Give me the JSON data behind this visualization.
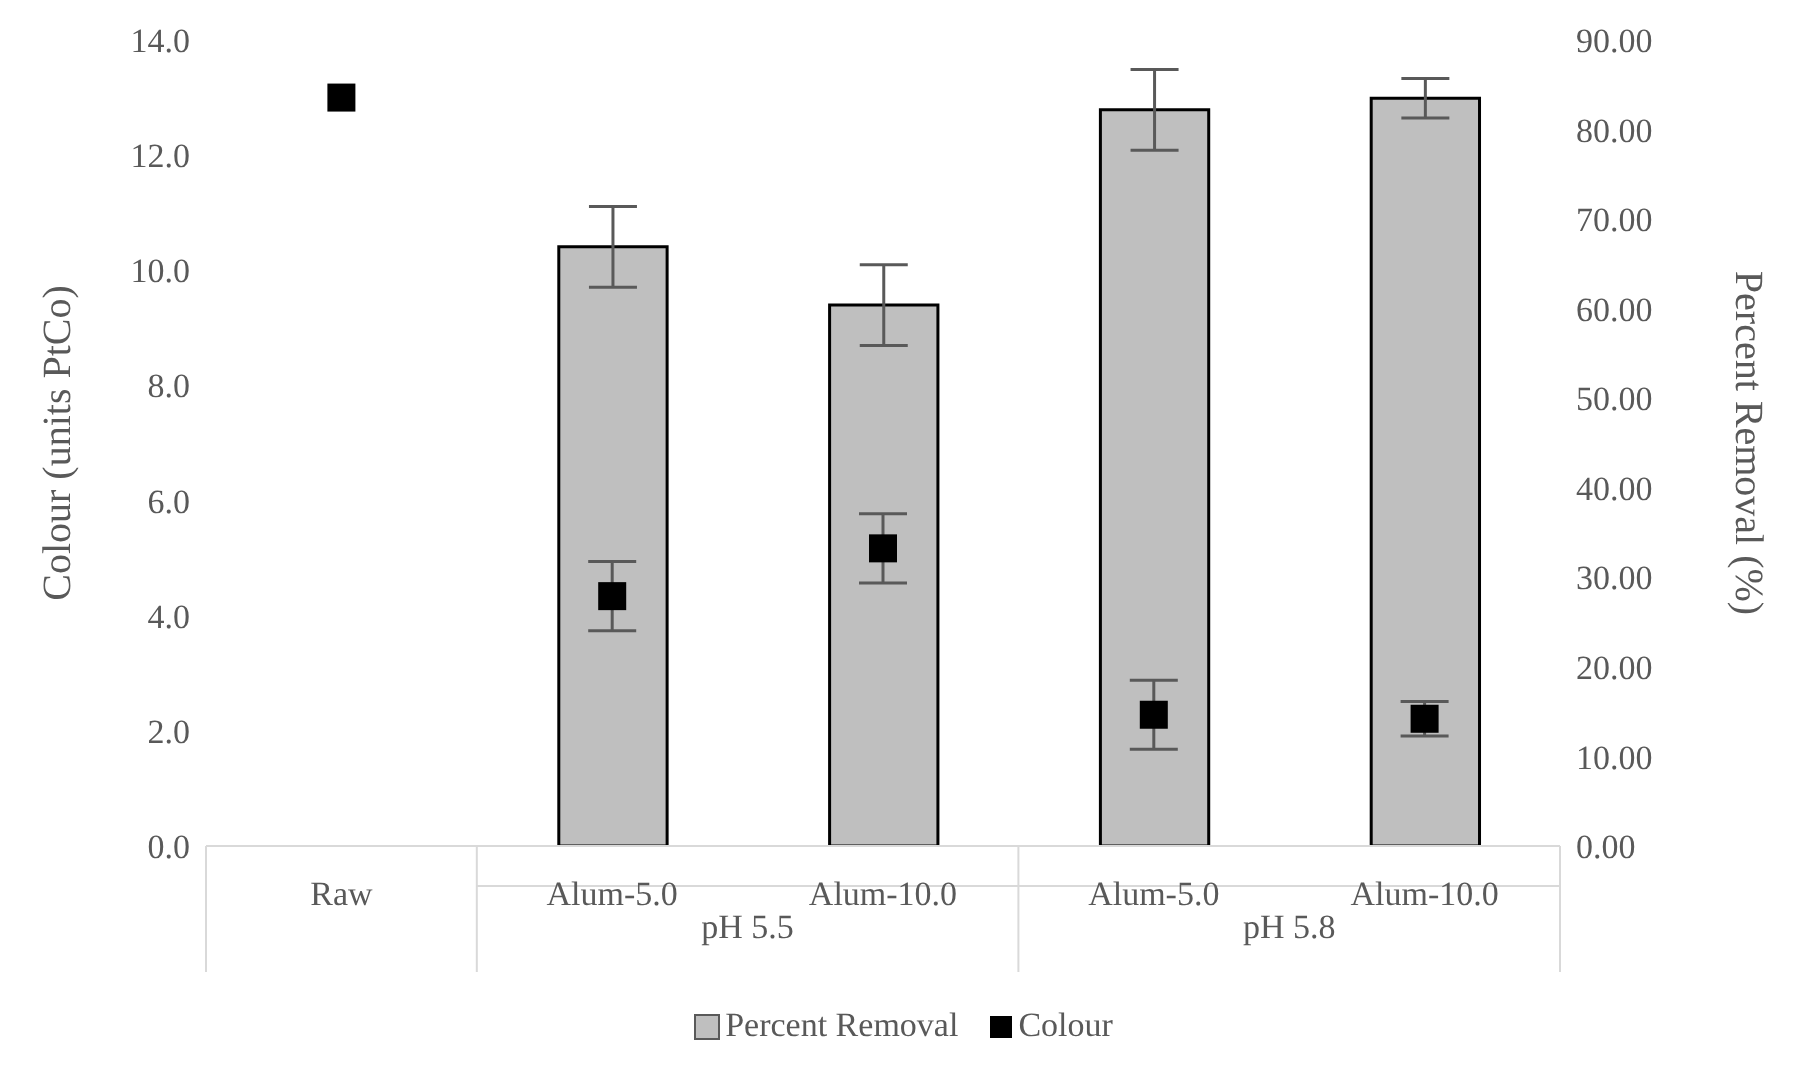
{
  "chart_data": {
    "type": "bar",
    "categories": [
      "Raw",
      "Alum-5.0",
      "Alum-10.0",
      "Alum-5.0",
      "Alum-10.0"
    ],
    "series": [
      {
        "name": "Percent Removal",
        "axis": "y2",
        "color": "#bfbfbf",
        "values": [
          null,
          66.9,
          60.4,
          82.2,
          83.5
        ],
        "errors": [
          null,
          4.5,
          4.5,
          4.5,
          2.2
        ]
      },
      {
        "name": "Colour",
        "type": "scatter",
        "color": "#000000",
        "marker": "square",
        "values": [
          13.0,
          4.34,
          5.17,
          2.28,
          2.21
        ],
        "errors": [
          null,
          0.6,
          0.6,
          0.6,
          0.3
        ]
      }
    ],
    "ylabel": "Colour (units PtCo)",
    "y2label": "Percent Removal (%)",
    "ylim": [
      0,
      14
    ],
    "yticks": [
      {
        "value": 0,
        "label": "0.0"
      },
      {
        "value": 2,
        "label": "2.0"
      },
      {
        "value": 4,
        "label": "4.0"
      },
      {
        "value": 6,
        "label": "6.0"
      },
      {
        "value": 8,
        "label": "8.0"
      },
      {
        "value": 10,
        "label": "10.0"
      },
      {
        "value": 12,
        "label": "12.0"
      },
      {
        "value": 14,
        "label": "14.0"
      }
    ],
    "y2lim": [
      0,
      90
    ],
    "y2ticks": [
      {
        "value": 0,
        "label": "0.00"
      },
      {
        "value": 10,
        "label": "10.00"
      },
      {
        "value": 20,
        "label": "20.00"
      },
      {
        "value": 30,
        "label": "30.00"
      },
      {
        "value": 40,
        "label": "40.00"
      },
      {
        "value": 50,
        "label": "50.00"
      },
      {
        "value": 60,
        "label": "60.00"
      },
      {
        "value": 70,
        "label": "70.00"
      },
      {
        "value": 80,
        "label": "80.00"
      },
      {
        "value": 90,
        "label": "90.00"
      }
    ],
    "annotations": [
      "pH 5.5",
      "pH 5.8"
    ],
    "grid": false,
    "legend": "bottom"
  }
}
